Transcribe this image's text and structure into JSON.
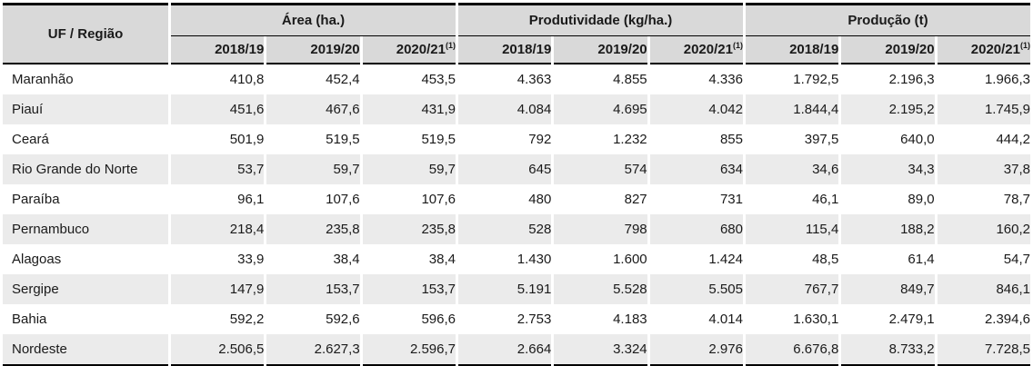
{
  "table": {
    "corner_header": "UF / Região",
    "column_groups": [
      {
        "label": "Área (ha.)"
      },
      {
        "label": "Produtividade (kg/ha.)"
      },
      {
        "label": "Produção (t)"
      }
    ],
    "season_headers": [
      {
        "label": "2018/19",
        "footnote": ""
      },
      {
        "label": "2019/20",
        "footnote": ""
      },
      {
        "label": "2020/21",
        "footnote": "(1)"
      }
    ],
    "rows": [
      {
        "region": "Maranhão",
        "values": [
          "410,8",
          "452,4",
          "453,5",
          "4.363",
          "4.855",
          "4.336",
          "1.792,5",
          "2.196,3",
          "1.966,3"
        ]
      },
      {
        "region": "Piauí",
        "values": [
          "451,6",
          "467,6",
          "431,9",
          "4.084",
          "4.695",
          "4.042",
          "1.844,4",
          "2.195,2",
          "1.745,9"
        ]
      },
      {
        "region": "Ceará",
        "values": [
          "501,9",
          "519,5",
          "519,5",
          "792",
          "1.232",
          "855",
          "397,5",
          "640,0",
          "444,2"
        ]
      },
      {
        "region": "Rio Grande do Norte",
        "values": [
          "53,7",
          "59,7",
          "59,7",
          "645",
          "574",
          "634",
          "34,6",
          "34,3",
          "37,8"
        ]
      },
      {
        "region": "Paraíba",
        "values": [
          "96,1",
          "107,6",
          "107,6",
          "480",
          "827",
          "731",
          "46,1",
          "89,0",
          "78,7"
        ]
      },
      {
        "region": "Pernambuco",
        "values": [
          "218,4",
          "235,8",
          "235,8",
          "528",
          "798",
          "680",
          "115,4",
          "188,2",
          "160,2"
        ]
      },
      {
        "region": "Alagoas",
        "values": [
          "33,9",
          "38,4",
          "38,4",
          "1.430",
          "1.600",
          "1.424",
          "48,5",
          "61,4",
          "54,7"
        ]
      },
      {
        "region": "Sergipe",
        "values": [
          "147,9",
          "153,7",
          "153,7",
          "5.191",
          "5.528",
          "5.505",
          "767,7",
          "849,7",
          "846,1"
        ]
      },
      {
        "region": "Bahia",
        "values": [
          "592,2",
          "592,6",
          "596,6",
          "2.753",
          "4.183",
          "4.014",
          "1.630,1",
          "2.479,1",
          "2.394,6"
        ]
      },
      {
        "region": "Nordeste",
        "values": [
          "2.506,5",
          "2.627,3",
          "2.596,7",
          "2.664",
          "3.324",
          "2.976",
          "6.676,8",
          "8.733,2",
          "7.728,5"
        ]
      }
    ],
    "colors": {
      "header_bg": "#d9d9d9",
      "stripe_bg": "#ebebeb",
      "rule": "#000000",
      "text": "#1a1a1a"
    }
  }
}
